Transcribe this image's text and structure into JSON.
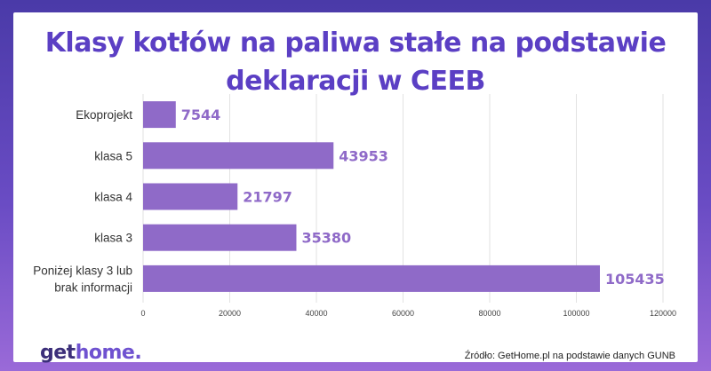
{
  "colors": {
    "bar": "#8f6ac8",
    "value_label": "#8f6ac8",
    "title": "#5b3fc4",
    "grid": "#e2e2e2"
  },
  "chart_data": {
    "type": "bar",
    "orientation": "horizontal",
    "title_line1": "Klasy kotłów na paliwa stałe na podstawie",
    "title_line2": "deklaracji w CEEB",
    "categories": [
      [
        "Ekoprojekt"
      ],
      [
        "klasa 5"
      ],
      [
        "klasa 4"
      ],
      [
        "klasa 3"
      ],
      [
        "Poniżej klasy 3 lub",
        "brak informacji"
      ]
    ],
    "values": [
      7544,
      43953,
      21797,
      35380,
      105435
    ],
    "value_labels": [
      "7544",
      "43953",
      "21797",
      "35380",
      "105435"
    ],
    "xlim": [
      0,
      120000
    ],
    "xticks": [
      0,
      20000,
      40000,
      60000,
      80000,
      100000,
      120000
    ],
    "xtick_labels": [
      "0",
      "20000",
      "40000",
      "60000",
      "80000",
      "100000",
      "120000"
    ],
    "grid": true,
    "legend": "none"
  },
  "footer": {
    "logo_part1": "get",
    "logo_part2": "home",
    "logo_dot": ".",
    "source": "Źródło: GetHome.pl na podstawie danych GUNB"
  }
}
